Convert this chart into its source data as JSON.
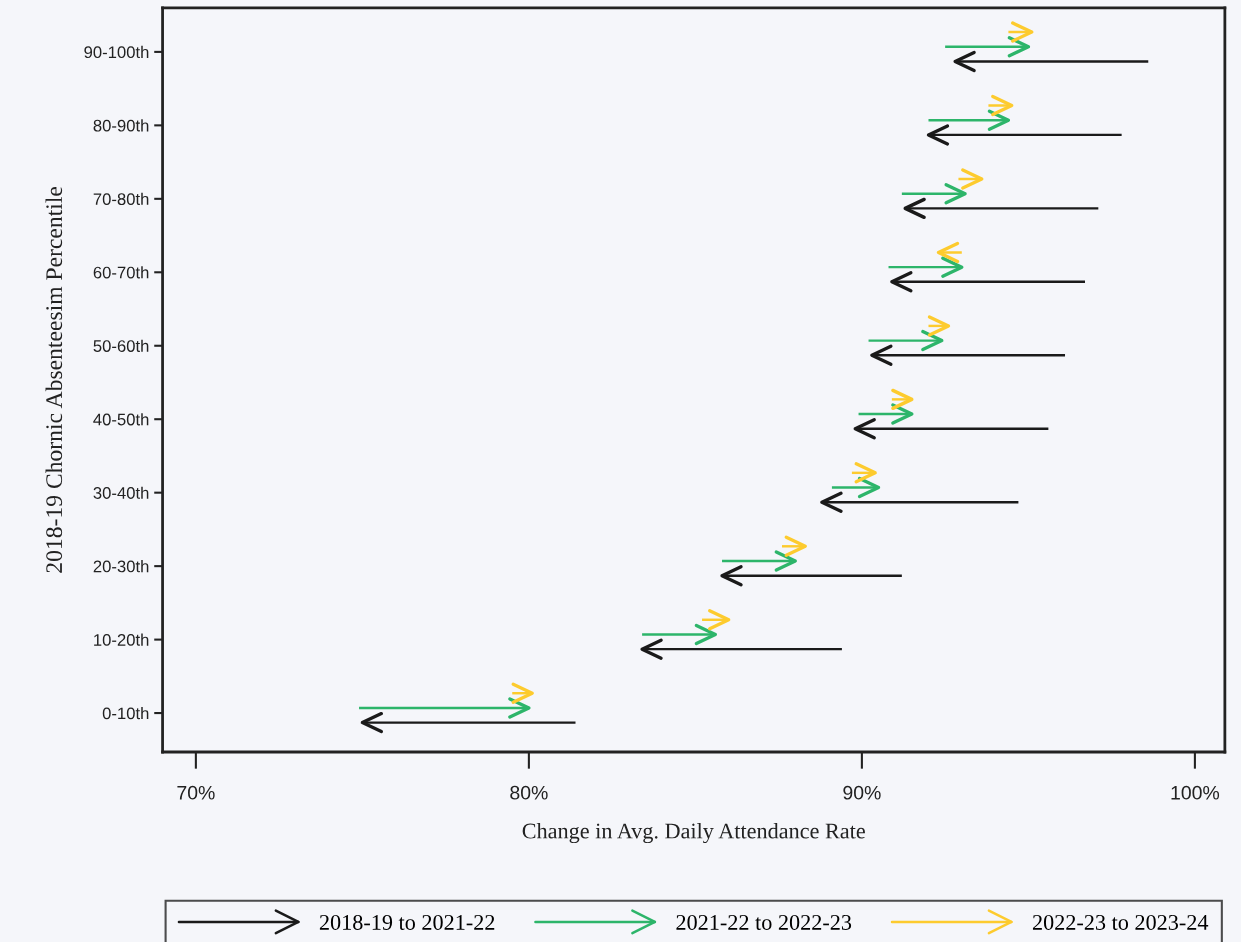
{
  "chart_data": {
    "type": "bar",
    "orientation": "horizontal",
    "xlabel": "Change in Avg. Daily Attendance Rate",
    "ylabel": "2018-19 Chornic Absenteesim Percentile",
    "categories": [
      "90-100th",
      "80-90th",
      "70-80th",
      "60-70th",
      "50-60th",
      "40-50th",
      "30-40th",
      "20-30th",
      "10-20th",
      "0-10th"
    ],
    "series": [
      {
        "name": "2018-19 to 2021-22",
        "color": "#1a1a1a",
        "base": [
          98.6,
          97.8,
          97.1,
          96.7,
          96.1,
          95.6,
          94.7,
          91.2,
          89.4,
          81.4
        ],
        "values": [
          -5.8,
          -5.8,
          -5.8,
          -5.8,
          -5.8,
          -5.8,
          -5.9,
          -5.4,
          -6.0,
          -6.4
        ]
      },
      {
        "name": "2021-22 to 2022-23",
        "color": "#2db56a",
        "base": [
          92.5,
          92.0,
          91.2,
          90.8,
          90.2,
          89.9,
          89.1,
          85.8,
          83.4,
          74.9
        ],
        "values": [
          2.5,
          2.4,
          1.9,
          2.2,
          2.2,
          1.6,
          1.4,
          2.2,
          2.2,
          5.1
        ]
      },
      {
        "name": "2022-23 to 2023-24",
        "color": "#fdcb2e",
        "base": [
          94.4,
          93.8,
          92.9,
          93.0,
          92.0,
          90.9,
          89.7,
          87.6,
          85.2,
          79.5
        ],
        "values": [
          0.7,
          0.7,
          0.7,
          -0.7,
          0.6,
          0.6,
          0.7,
          0.7,
          0.8,
          0.6
        ]
      }
    ],
    "xlim": [
      69,
      100.9
    ],
    "xticks": [
      {
        "value": 70,
        "label": "70%"
      },
      {
        "value": 80,
        "label": "80%"
      },
      {
        "value": 90,
        "label": "90%"
      },
      {
        "value": 100,
        "label": "100%"
      }
    ],
    "grid": false,
    "legend": "bottom"
  }
}
